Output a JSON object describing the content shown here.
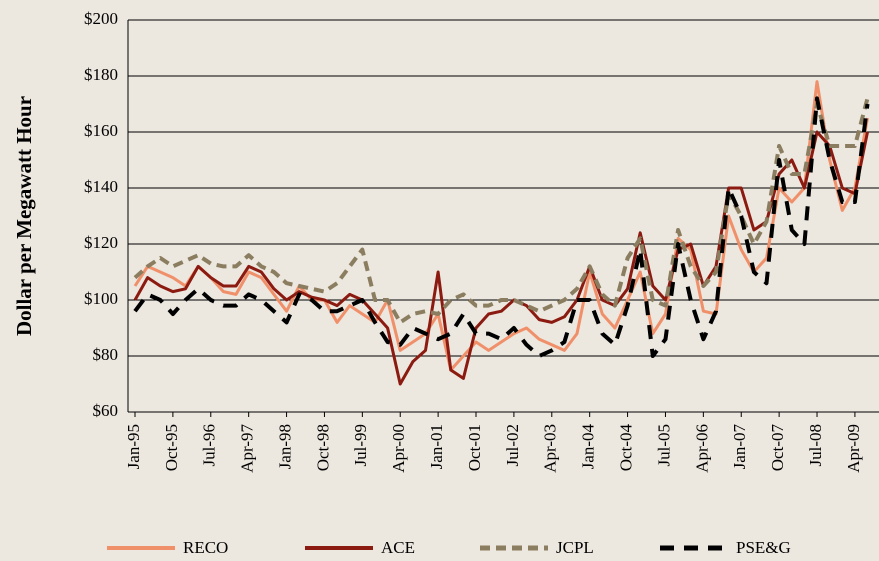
{
  "chart_data": {
    "type": "line",
    "ylabel": "Dollar per Megawatt Hour",
    "categories": [
      "Jan-95",
      null,
      null,
      "Oct-95",
      null,
      null,
      "Jul-96",
      null,
      null,
      "Apr-97",
      null,
      null,
      "Jan-98",
      null,
      null,
      "Oct-98",
      null,
      null,
      "Jul-99",
      null,
      null,
      "Apr-00",
      null,
      null,
      "Jan-01",
      null,
      null,
      "Oct-01",
      null,
      null,
      "Jul-02",
      null,
      null,
      "Apr-03",
      null,
      null,
      "Jan-04",
      null,
      null,
      "Oct-04",
      null,
      null,
      "Jul-05",
      null,
      null,
      "Apr-06",
      null,
      null,
      "Jan-07",
      null,
      null,
      "Oct-07",
      null,
      null,
      "Jul-08",
      null,
      null,
      "Apr-09",
      null
    ],
    "series": [
      {
        "name": "RECO",
        "color": "#f0906a",
        "dash": "solid",
        "values": [
          105,
          112,
          110,
          108,
          105,
          112,
          108,
          103,
          102,
          110,
          108,
          102,
          96,
          105,
          100,
          100,
          92,
          98,
          95,
          92,
          100,
          82,
          85,
          88,
          95,
          75,
          80,
          85,
          82,
          85,
          88,
          90,
          86,
          84,
          82,
          88,
          110,
          95,
          90,
          100,
          110,
          88,
          95,
          122,
          118,
          96,
          95,
          130,
          118,
          110,
          115,
          140,
          135,
          140,
          178,
          150,
          132,
          140,
          165
        ]
      },
      {
        "name": "ACE",
        "color": "#8b1a10",
        "dash": "solid",
        "values": [
          100,
          108,
          105,
          103,
          104,
          112,
          108,
          105,
          105,
          112,
          110,
          104,
          100,
          103,
          101,
          100,
          98,
          102,
          100,
          95,
          90,
          70,
          78,
          82,
          110,
          75,
          72,
          90,
          95,
          96,
          100,
          98,
          93,
          92,
          94,
          100,
          112,
          100,
          98,
          104,
          124,
          105,
          100,
          118,
          120,
          105,
          112,
          140,
          140,
          125,
          128,
          145,
          150,
          140,
          160,
          155,
          140,
          138,
          160
        ]
      },
      {
        "name": "JCPL",
        "color": "#8b7d5f",
        "dash": "dashed",
        "values": [
          108,
          112,
          115,
          112,
          114,
          116,
          113,
          112,
          112,
          116,
          112,
          110,
          106,
          105,
          104,
          103,
          106,
          112,
          118,
          100,
          100,
          92,
          95,
          96,
          95,
          100,
          102,
          98,
          98,
          100,
          100,
          98,
          96,
          98,
          100,
          104,
          112,
          102,
          98,
          115,
          122,
          100,
          98,
          125,
          112,
          105,
          110,
          138,
          130,
          120,
          128,
          155,
          145,
          145,
          170,
          155,
          155,
          155,
          172
        ]
      },
      {
        "name": "PSE&G",
        "color": "#000000",
        "dash": "dashed",
        "values": [
          96,
          102,
          100,
          95,
          100,
          104,
          100,
          98,
          98,
          102,
          100,
          96,
          92,
          102,
          100,
          96,
          96,
          98,
          100,
          92,
          85,
          84,
          90,
          88,
          86,
          88,
          95,
          88,
          88,
          86,
          90,
          84,
          80,
          82,
          85,
          100,
          100,
          88,
          84,
          98,
          118,
          80,
          86,
          120,
          100,
          86,
          96,
          140,
          130,
          110,
          106,
          150,
          125,
          120,
          172,
          150,
          135,
          135,
          170
        ]
      }
    ],
    "ylim": [
      60,
      200
    ],
    "yticks": [
      {
        "value": 60,
        "label": "$60"
      },
      {
        "value": 80,
        "label": "$80"
      },
      {
        "value": 100,
        "label": "$100"
      },
      {
        "value": 120,
        "label": "$120"
      },
      {
        "value": 140,
        "label": "$140"
      },
      {
        "value": 160,
        "label": "$160"
      },
      {
        "value": 180,
        "label": "$180"
      },
      {
        "value": 200,
        "label": "$200"
      }
    ],
    "grid": true
  }
}
